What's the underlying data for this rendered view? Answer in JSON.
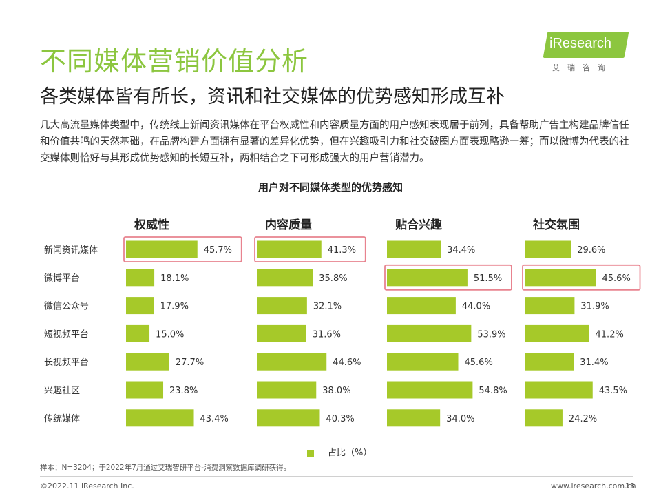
{
  "header": {
    "title": "不同媒体营销价值分析",
    "subtitle": "各类媒体皆有所长，资讯和社交媒体的优势感知形成互补"
  },
  "logo": {
    "name": "iResearch",
    "sub": "艾瑞咨询"
  },
  "description": "几大高流量媒体类型中，传统线上新闻资讯媒体在平台权威性和内容质量方面的用户感知表现居于前列，具备帮助广告主构建品牌信任和价值共鸣的天然基础，在品牌构建方面拥有显著的差异化优势，但在兴趣吸引力和社交破圈方面表现略逊一筹；而以微博为代表的社交媒体则恰好与其形成优势感知的长短互补，两相结合之下可形成强大的用户营销潜力。",
  "colors": {
    "bar": "#a6c929",
    "highlight": "#e8838f",
    "title": "#8cc63f"
  },
  "chart_data": {
    "type": "bar",
    "title": "用户对不同媒体类型的优势感知",
    "categories": [
      "新闻资讯媒体",
      "微博平台",
      "微信公众号",
      "短视频平台",
      "长视频平台",
      "兴趣社区",
      "传统媒体"
    ],
    "series": [
      {
        "name": "权威性",
        "values": [
          45.7,
          18.1,
          17.9,
          15.0,
          27.7,
          23.8,
          43.4
        ],
        "labels": [
          "45.7%",
          "18.1%",
          "17.9%",
          "15.0%",
          "27.7%",
          "23.8%",
          "43.4%"
        ],
        "highlight": [
          0
        ]
      },
      {
        "name": "内容质量",
        "values": [
          41.3,
          35.8,
          32.1,
          31.6,
          44.6,
          38.0,
          40.3
        ],
        "labels": [
          "41.3%",
          "35.8%",
          "32.1%",
          "31.6%",
          "44.6%",
          "38.0%",
          "40.3%"
        ],
        "highlight": [
          0
        ]
      },
      {
        "name": "贴合兴趣",
        "values": [
          34.4,
          51.5,
          44.0,
          53.9,
          45.6,
          54.8,
          34.0
        ],
        "labels": [
          "34.4%",
          "51.5%",
          "44.0%",
          "53.9%",
          "45.6%",
          "54.8%",
          "34.0%"
        ],
        "highlight": [
          1
        ]
      },
      {
        "name": "社交氛围",
        "values": [
          29.6,
          45.6,
          31.9,
          41.2,
          31.4,
          43.5,
          24.2
        ],
        "labels": [
          "29.6%",
          "45.6%",
          "31.9%",
          "41.2%",
          "31.4%",
          "43.5%",
          "24.2%"
        ],
        "highlight": [
          1
        ]
      }
    ],
    "legend": "占比（%）",
    "legend_position": "bottom",
    "grid": false
  },
  "footer": {
    "note": "样本：N=3204；于2022年7月通过艾瑞智研平台-消费洞察数据库调研获得。",
    "copyright": "©2022.11 iResearch Inc.",
    "site": "www.iresearch.com.cn",
    "page": "13"
  }
}
